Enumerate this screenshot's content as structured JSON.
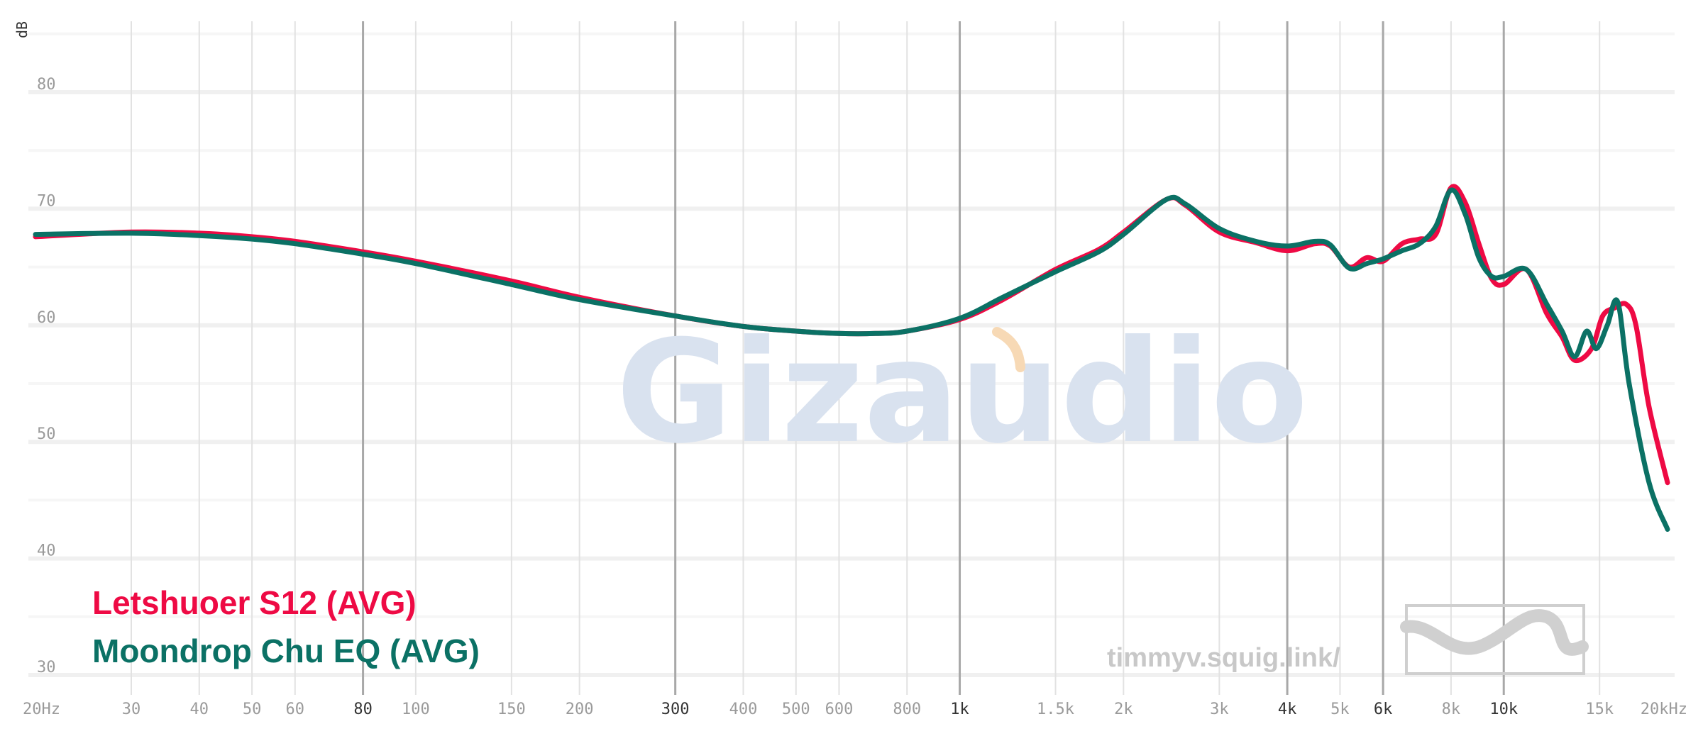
{
  "chart_data": {
    "type": "line",
    "ylabel": "dB",
    "xlabel": "",
    "x_scale": "log",
    "xlim": [
      20,
      20000
    ],
    "ylim": [
      29,
      89
    ],
    "grid": true,
    "legend_position": "bottom-left",
    "y_ticks": [
      30,
      40,
      50,
      60,
      70,
      80
    ],
    "x_ticks": [
      {
        "label": "20Hz",
        "value": 20,
        "major": false
      },
      {
        "label": "30",
        "value": 30,
        "major": false
      },
      {
        "label": "40",
        "value": 40,
        "major": false
      },
      {
        "label": "50",
        "value": 50,
        "major": false
      },
      {
        "label": "60",
        "value": 60,
        "major": false
      },
      {
        "label": "80",
        "value": 80,
        "major": true
      },
      {
        "label": "100",
        "value": 100,
        "major": false
      },
      {
        "label": "150",
        "value": 150,
        "major": false
      },
      {
        "label": "200",
        "value": 200,
        "major": false
      },
      {
        "label": "300",
        "value": 300,
        "major": true
      },
      {
        "label": "400",
        "value": 400,
        "major": false
      },
      {
        "label": "500",
        "value": 500,
        "major": false
      },
      {
        "label": "600",
        "value": 600,
        "major": false
      },
      {
        "label": "800",
        "value": 800,
        "major": false
      },
      {
        "label": "1k",
        "value": 1000,
        "major": true
      },
      {
        "label": "1.5k",
        "value": 1500,
        "major": false
      },
      {
        "label": "2k",
        "value": 2000,
        "major": false
      },
      {
        "label": "3k",
        "value": 3000,
        "major": false
      },
      {
        "label": "4k",
        "value": 4000,
        "major": true
      },
      {
        "label": "5k",
        "value": 5000,
        "major": false
      },
      {
        "label": "6k",
        "value": 6000,
        "major": true
      },
      {
        "label": "8k",
        "value": 8000,
        "major": false
      },
      {
        "label": "10k",
        "value": 10000,
        "major": true
      },
      {
        "label": "15k",
        "value": 15000,
        "major": false
      },
      {
        "label": "20kHz",
        "value": 20000,
        "major": false
      }
    ],
    "series": [
      {
        "name": "Letshuoer S12 (AVG)",
        "color": "#ee0a44",
        "points": [
          [
            20,
            67.6
          ],
          [
            30,
            68.0
          ],
          [
            40,
            67.9
          ],
          [
            50,
            67.6
          ],
          [
            60,
            67.2
          ],
          [
            80,
            66.3
          ],
          [
            100,
            65.5
          ],
          [
            150,
            63.8
          ],
          [
            200,
            62.4
          ],
          [
            300,
            60.8
          ],
          [
            400,
            59.9
          ],
          [
            500,
            59.5
          ],
          [
            600,
            59.3
          ],
          [
            700,
            59.3
          ],
          [
            800,
            59.5
          ],
          [
            1000,
            60.5
          ],
          [
            1200,
            62.2
          ],
          [
            1500,
            64.8
          ],
          [
            1800,
            66.5
          ],
          [
            2000,
            68.0
          ],
          [
            2400,
            70.8
          ],
          [
            2600,
            70.3
          ],
          [
            3000,
            68.0
          ],
          [
            3500,
            67.1
          ],
          [
            4000,
            66.4
          ],
          [
            4500,
            67.0
          ],
          [
            4800,
            66.8
          ],
          [
            5200,
            65.0
          ],
          [
            5600,
            65.8
          ],
          [
            6000,
            65.5
          ],
          [
            6500,
            67.0
          ],
          [
            7000,
            67.4
          ],
          [
            7500,
            67.8
          ],
          [
            8000,
            71.8
          ],
          [
            8500,
            70.5
          ],
          [
            9000,
            67.0
          ],
          [
            9500,
            64.0
          ],
          [
            10000,
            63.5
          ],
          [
            11000,
            64.8
          ],
          [
            12000,
            61.0
          ],
          [
            12800,
            59.0
          ],
          [
            13500,
            57.0
          ],
          [
            14500,
            58.0
          ],
          [
            15200,
            60.8
          ],
          [
            16000,
            61.5
          ],
          [
            16800,
            61.8
          ],
          [
            17500,
            60.0
          ],
          [
            18500,
            53.0
          ],
          [
            20000,
            46.5
          ]
        ]
      },
      {
        "name": "Moondrop Chu EQ (AVG)",
        "color": "#0b7165",
        "points": [
          [
            20,
            67.8
          ],
          [
            30,
            67.9
          ],
          [
            40,
            67.7
          ],
          [
            50,
            67.4
          ],
          [
            60,
            67.0
          ],
          [
            80,
            66.1
          ],
          [
            100,
            65.3
          ],
          [
            150,
            63.5
          ],
          [
            200,
            62.2
          ],
          [
            300,
            60.8
          ],
          [
            400,
            59.9
          ],
          [
            500,
            59.5
          ],
          [
            600,
            59.3
          ],
          [
            700,
            59.3
          ],
          [
            800,
            59.5
          ],
          [
            1000,
            60.6
          ],
          [
            1200,
            62.4
          ],
          [
            1500,
            64.6
          ],
          [
            1800,
            66.3
          ],
          [
            2000,
            67.8
          ],
          [
            2400,
            70.8
          ],
          [
            2600,
            70.4
          ],
          [
            3000,
            68.3
          ],
          [
            3500,
            67.2
          ],
          [
            4000,
            66.8
          ],
          [
            4500,
            67.2
          ],
          [
            4800,
            66.9
          ],
          [
            5200,
            64.9
          ],
          [
            5600,
            65.3
          ],
          [
            6000,
            65.7
          ],
          [
            6500,
            66.4
          ],
          [
            7000,
            67.0
          ],
          [
            7500,
            68.5
          ],
          [
            8000,
            71.6
          ],
          [
            8500,
            69.5
          ],
          [
            9000,
            65.8
          ],
          [
            9500,
            64.2
          ],
          [
            10000,
            64.2
          ],
          [
            11000,
            64.8
          ],
          [
            12000,
            61.8
          ],
          [
            12800,
            59.5
          ],
          [
            13500,
            57.3
          ],
          [
            14200,
            59.5
          ],
          [
            14800,
            58.0
          ],
          [
            15500,
            60.0
          ],
          [
            16200,
            62.0
          ],
          [
            17000,
            55.0
          ],
          [
            18500,
            46.5
          ],
          [
            20000,
            42.5
          ]
        ]
      }
    ]
  },
  "watermark": "Gizaudio",
  "credit": "timmyv.squig.link/"
}
